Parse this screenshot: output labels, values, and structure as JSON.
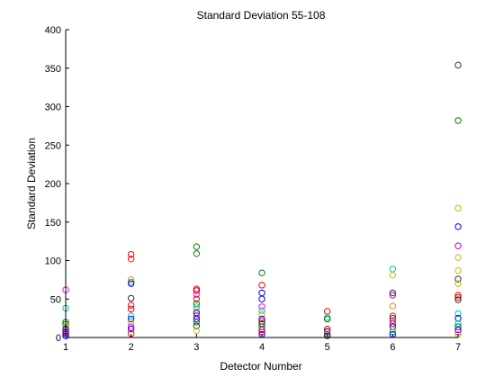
{
  "chart_data": {
    "type": "scatter",
    "title": "Standard Deviation 55-108",
    "xlabel": "Detector Number",
    "ylabel": "Standard Deviation",
    "xlim": [
      1,
      7
    ],
    "ylim": [
      0,
      400
    ],
    "xticks": [
      "1",
      "2",
      "3",
      "4",
      "5",
      "6",
      "7"
    ],
    "yticks": [
      "0",
      "50",
      "100",
      "150",
      "200",
      "250",
      "300",
      "350",
      "400"
    ],
    "grid": false,
    "legend": "none",
    "marker": "open-circle",
    "points": [
      {
        "x": 1,
        "y": 62,
        "color": "#ff00ff"
      },
      {
        "x": 1,
        "y": 38,
        "color": "#00bfbf"
      },
      {
        "x": 1,
        "y": 20,
        "color": "#008000"
      },
      {
        "x": 1,
        "y": 17,
        "color": "#008000"
      },
      {
        "x": 1,
        "y": 14,
        "color": "#bfbf00"
      },
      {
        "x": 1,
        "y": 11,
        "color": "#0000ff"
      },
      {
        "x": 1,
        "y": 8,
        "color": "#ff0000"
      },
      {
        "x": 1,
        "y": 6,
        "color": "#0000ff"
      },
      {
        "x": 1,
        "y": 4,
        "color": "#bf00bf"
      },
      {
        "x": 1,
        "y": 2,
        "color": "#0000ff"
      },
      {
        "x": 2,
        "y": 108,
        "color": "#ff0000"
      },
      {
        "x": 2,
        "y": 102,
        "color": "#ff0000"
      },
      {
        "x": 2,
        "y": 75,
        "color": "#ff8000"
      },
      {
        "x": 2,
        "y": 72,
        "color": "#00bfbf"
      },
      {
        "x": 2,
        "y": 70,
        "color": "#0000ff"
      },
      {
        "x": 2,
        "y": 51,
        "color": "#333333"
      },
      {
        "x": 2,
        "y": 42,
        "color": "#ff0000"
      },
      {
        "x": 2,
        "y": 37,
        "color": "#ff0000"
      },
      {
        "x": 2,
        "y": 28,
        "color": "#00bfbf"
      },
      {
        "x": 2,
        "y": 24,
        "color": "#0000ff"
      },
      {
        "x": 2,
        "y": 19,
        "color": "#bfbf00"
      },
      {
        "x": 2,
        "y": 14,
        "color": "#ff00ff"
      },
      {
        "x": 2,
        "y": 11,
        "color": "#0000ff"
      },
      {
        "x": 2,
        "y": 5,
        "color": "#ff0000"
      },
      {
        "x": 3,
        "y": 118,
        "color": "#008000"
      },
      {
        "x": 3,
        "y": 109,
        "color": "#008000"
      },
      {
        "x": 3,
        "y": 63,
        "color": "#ff0000"
      },
      {
        "x": 3,
        "y": 61,
        "color": "#cc0000"
      },
      {
        "x": 3,
        "y": 56,
        "color": "#ff00ff"
      },
      {
        "x": 3,
        "y": 50,
        "color": "#ff0000"
      },
      {
        "x": 3,
        "y": 44,
        "color": "#008000"
      },
      {
        "x": 3,
        "y": 40,
        "color": "#00bfbf"
      },
      {
        "x": 3,
        "y": 36,
        "color": "#bfbf00"
      },
      {
        "x": 3,
        "y": 32,
        "color": "#0000ff"
      },
      {
        "x": 3,
        "y": 28,
        "color": "#bf00bf"
      },
      {
        "x": 3,
        "y": 24,
        "color": "#0000ff"
      },
      {
        "x": 3,
        "y": 20,
        "color": "#008000"
      },
      {
        "x": 3,
        "y": 15,
        "color": "#333333"
      },
      {
        "x": 3,
        "y": 9,
        "color": "#bfbf00"
      },
      {
        "x": 4,
        "y": 84,
        "color": "#008000"
      },
      {
        "x": 4,
        "y": 68,
        "color": "#ff0000"
      },
      {
        "x": 4,
        "y": 58,
        "color": "#0000ff"
      },
      {
        "x": 4,
        "y": 50,
        "color": "#0000ff"
      },
      {
        "x": 4,
        "y": 40,
        "color": "#ff00ff"
      },
      {
        "x": 4,
        "y": 35,
        "color": "#00bfbf"
      },
      {
        "x": 4,
        "y": 30,
        "color": "#bfbf00"
      },
      {
        "x": 4,
        "y": 24,
        "color": "#0000ff"
      },
      {
        "x": 4,
        "y": 21,
        "color": "#ff0000"
      },
      {
        "x": 4,
        "y": 18,
        "color": "#333333"
      },
      {
        "x": 4,
        "y": 14,
        "color": "#008000"
      },
      {
        "x": 4,
        "y": 10,
        "color": "#bf00bf"
      },
      {
        "x": 4,
        "y": 7,
        "color": "#ff0000"
      },
      {
        "x": 4,
        "y": 4,
        "color": "#0000ff"
      },
      {
        "x": 5,
        "y": 34,
        "color": "#ff0000"
      },
      {
        "x": 5,
        "y": 26,
        "color": "#00bfbf"
      },
      {
        "x": 5,
        "y": 24,
        "color": "#008000"
      },
      {
        "x": 5,
        "y": 11,
        "color": "#ff0000"
      },
      {
        "x": 5,
        "y": 8,
        "color": "#0000ff"
      },
      {
        "x": 5,
        "y": 6,
        "color": "#bfbf00"
      },
      {
        "x": 5,
        "y": 4,
        "color": "#bf00bf"
      },
      {
        "x": 5,
        "y": 2,
        "color": "#333333"
      },
      {
        "x": 6,
        "y": 89,
        "color": "#00bfbf"
      },
      {
        "x": 6,
        "y": 81,
        "color": "#bfbf00"
      },
      {
        "x": 6,
        "y": 58,
        "color": "#333333"
      },
      {
        "x": 6,
        "y": 55,
        "color": "#bf00bf"
      },
      {
        "x": 6,
        "y": 41,
        "color": "#ff8000"
      },
      {
        "x": 6,
        "y": 28,
        "color": "#ff0000"
      },
      {
        "x": 6,
        "y": 25,
        "color": "#008000"
      },
      {
        "x": 6,
        "y": 22,
        "color": "#ff00ff"
      },
      {
        "x": 6,
        "y": 18,
        "color": "#ff0000"
      },
      {
        "x": 6,
        "y": 14,
        "color": "#0000ff"
      },
      {
        "x": 6,
        "y": 10,
        "color": "#bfbf00"
      },
      {
        "x": 6,
        "y": 7,
        "color": "#00bfbf"
      },
      {
        "x": 6,
        "y": 4,
        "color": "#0000ff"
      },
      {
        "x": 7,
        "y": 354,
        "color": "#333333"
      },
      {
        "x": 7,
        "y": 282,
        "color": "#008000"
      },
      {
        "x": 7,
        "y": 168,
        "color": "#bfbf00"
      },
      {
        "x": 7,
        "y": 144,
        "color": "#0000ff"
      },
      {
        "x": 7,
        "y": 119,
        "color": "#bf00bf"
      },
      {
        "x": 7,
        "y": 104,
        "color": "#bfbf00"
      },
      {
        "x": 7,
        "y": 87,
        "color": "#bfbf00"
      },
      {
        "x": 7,
        "y": 76,
        "color": "#333333"
      },
      {
        "x": 7,
        "y": 70,
        "color": "#bfbf00"
      },
      {
        "x": 7,
        "y": 55,
        "color": "#ff0000"
      },
      {
        "x": 7,
        "y": 52,
        "color": "#cc0000"
      },
      {
        "x": 7,
        "y": 49,
        "color": "#333333"
      },
      {
        "x": 7,
        "y": 31,
        "color": "#00bfbf"
      },
      {
        "x": 7,
        "y": 25,
        "color": "#0000ff"
      },
      {
        "x": 7,
        "y": 18,
        "color": "#00bfbf"
      },
      {
        "x": 7,
        "y": 14,
        "color": "#008000"
      },
      {
        "x": 7,
        "y": 10,
        "color": "#0000ff"
      },
      {
        "x": 7,
        "y": 7,
        "color": "#ff00ff"
      },
      {
        "x": 7,
        "y": 4,
        "color": "#bfbf00"
      }
    ]
  }
}
